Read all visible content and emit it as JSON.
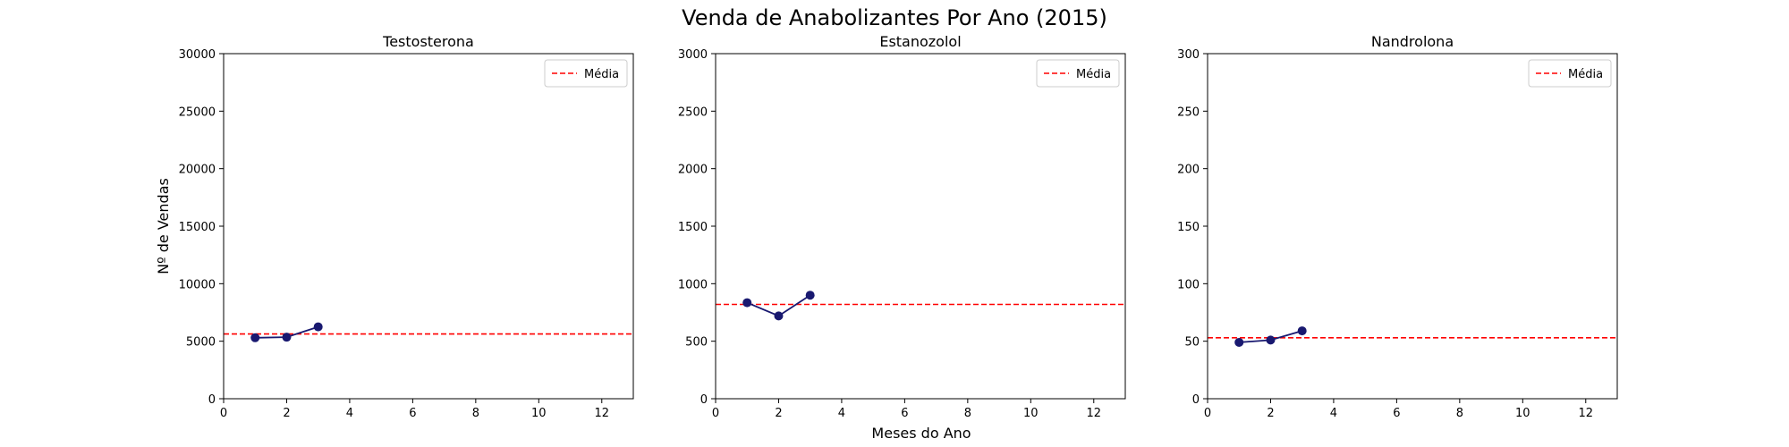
{
  "figure": {
    "suptitle": "Venda de Anabolizantes Por Ano (2015)",
    "xlabel": "Meses do Ano",
    "ylabel": "Nº de Vendas"
  },
  "colors": {
    "line": "#191970",
    "mean": "#ff0000",
    "axes": "#000000",
    "background": "#ffffff"
  },
  "chart_data": [
    {
      "type": "line",
      "title": "Testosterona",
      "x": [
        1,
        2,
        3
      ],
      "values": [
        5300,
        5350,
        6250
      ],
      "mean": {
        "label": "Média",
        "value": 5630
      },
      "xlim": [
        0,
        13
      ],
      "ylim": [
        0,
        30000
      ],
      "xticks": [
        0,
        2,
        4,
        6,
        8,
        10,
        12
      ],
      "yticks": [
        0,
        5000,
        10000,
        15000,
        20000,
        25000,
        30000
      ],
      "legend": "upper right",
      "grid": false
    },
    {
      "type": "line",
      "title": "Estanozolol",
      "x": [
        1,
        2,
        3
      ],
      "values": [
        835,
        720,
        900
      ],
      "mean": {
        "label": "Média",
        "value": 820
      },
      "xlim": [
        0,
        13
      ],
      "ylim": [
        0,
        3000
      ],
      "xticks": [
        0,
        2,
        4,
        6,
        8,
        10,
        12
      ],
      "yticks": [
        0,
        500,
        1000,
        1500,
        2000,
        2500,
        3000
      ],
      "legend": "upper right",
      "grid": false
    },
    {
      "type": "line",
      "title": "Nandrolona",
      "x": [
        1,
        2,
        3
      ],
      "values": [
        49,
        51,
        59
      ],
      "mean": {
        "label": "Média",
        "value": 53
      },
      "xlim": [
        0,
        13
      ],
      "ylim": [
        0,
        300
      ],
      "xticks": [
        0,
        2,
        4,
        6,
        8,
        10,
        12
      ],
      "yticks": [
        0,
        50,
        100,
        150,
        200,
        250,
        300
      ],
      "legend": "upper right",
      "grid": false
    }
  ]
}
